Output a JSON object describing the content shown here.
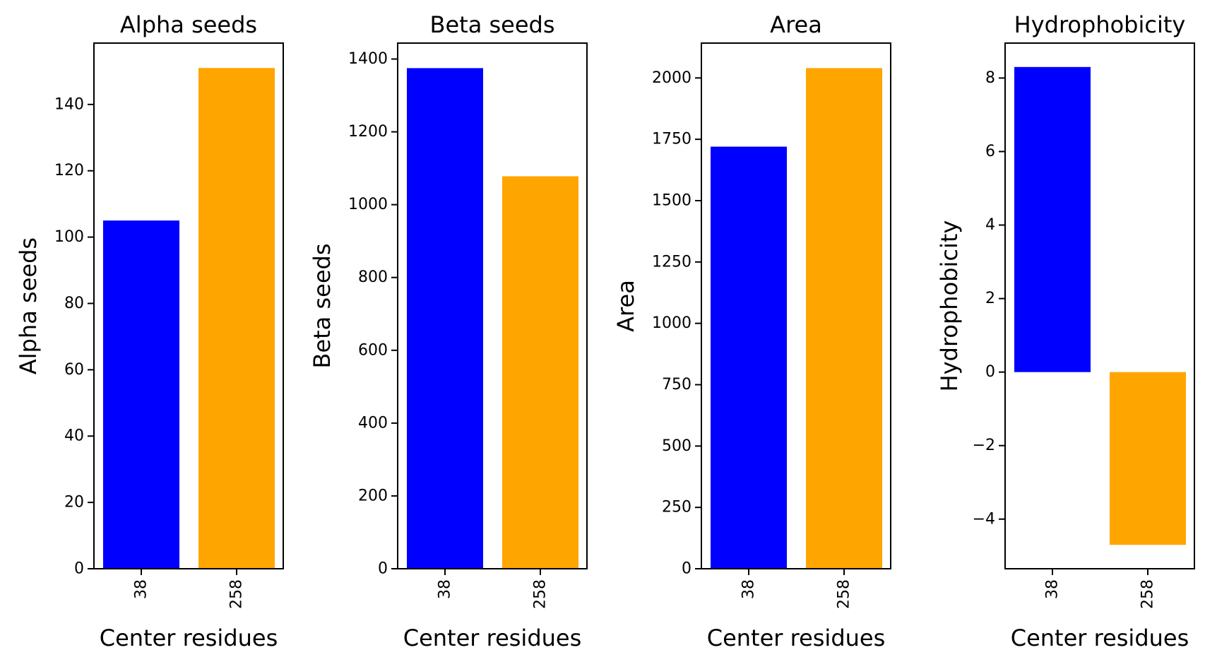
{
  "chart_data": [
    {
      "type": "bar",
      "title": "Alpha seeds",
      "xlabel": "Center residues",
      "ylabel": "Alpha seeds",
      "categories": [
        "38",
        "258"
      ],
      "values": [
        105,
        151
      ],
      "colors": [
        "#0000ff",
        "#ffa500"
      ],
      "ylim": [
        0,
        158.5
      ],
      "yticks": [
        0,
        20,
        40,
        60,
        80,
        100,
        120,
        140
      ],
      "ytick_labels": [
        "0",
        "20",
        "40",
        "60",
        "80",
        "100",
        "120",
        "140"
      ],
      "grid": false,
      "x_tick_rotation": "vertical"
    },
    {
      "type": "bar",
      "title": "Beta seeds",
      "xlabel": "Center residues",
      "ylabel": "Beta seeds",
      "categories": [
        "38",
        "258"
      ],
      "values": [
        1375,
        1078
      ],
      "colors": [
        "#0000ff",
        "#ffa500"
      ],
      "ylim": [
        0,
        1443.75
      ],
      "yticks": [
        0,
        200,
        400,
        600,
        800,
        1000,
        1200,
        1400
      ],
      "ytick_labels": [
        "0",
        "200",
        "400",
        "600",
        "800",
        "1000",
        "1200",
        "1400"
      ],
      "grid": false,
      "x_tick_rotation": "vertical"
    },
    {
      "type": "bar",
      "title": "Area",
      "xlabel": "Center residues",
      "ylabel": "Area",
      "categories": [
        "38",
        "258"
      ],
      "values": [
        1720,
        2040
      ],
      "colors": [
        "#0000ff",
        "#ffa500"
      ],
      "ylim": [
        0,
        2142
      ],
      "yticks": [
        0,
        250,
        500,
        750,
        1000,
        1250,
        1500,
        1750,
        2000
      ],
      "ytick_labels": [
        "0",
        "250",
        "500",
        "750",
        "1000",
        "1250",
        "1500",
        "1750",
        "2000"
      ],
      "grid": false,
      "x_tick_rotation": "vertical"
    },
    {
      "type": "bar",
      "title": "Hydrophobicity",
      "xlabel": "Center residues",
      "ylabel": "Hydrophobicity",
      "categories": [
        "38",
        "258"
      ],
      "values": [
        8.3,
        -4.7
      ],
      "colors": [
        "#0000ff",
        "#ffa500"
      ],
      "ylim": [
        -5.35,
        8.95
      ],
      "yticks": [
        -4,
        -2,
        0,
        2,
        4,
        6,
        8
      ],
      "ytick_labels": [
        "−4",
        "−2",
        "0",
        "2",
        "4",
        "6",
        "8"
      ],
      "grid": false,
      "x_tick_rotation": "vertical"
    }
  ]
}
